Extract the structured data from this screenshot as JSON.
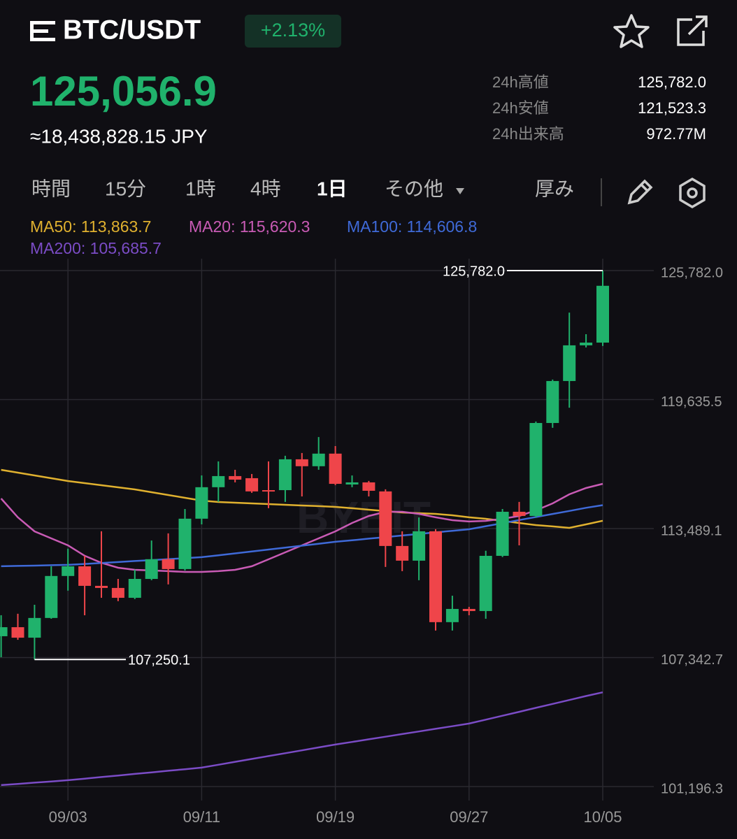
{
  "header": {
    "pair": "BTC/USDT",
    "change": "+2.13%",
    "price": "125,056.9",
    "price_jpy": "≈18,438,828.15 JPY",
    "stats": [
      {
        "label": "24h高値",
        "value": "125,782.0"
      },
      {
        "label": "24h安値",
        "value": "121,523.3"
      },
      {
        "label": "24h出来高",
        "value": "972.77M"
      }
    ]
  },
  "tabs": [
    "時間",
    "15分",
    "1時",
    "4時",
    "1日",
    "その他"
  ],
  "active_tab": 4,
  "depth": "厚み",
  "chart_data": {
    "type": "candlestick",
    "watermark": "BYBIT",
    "categories": [
      null,
      null,
      null,
      null,
      "09/03",
      null,
      null,
      null,
      null,
      null,
      null,
      null,
      "09/11",
      null,
      null,
      null,
      null,
      null,
      null,
      null,
      "09/19",
      null,
      null,
      null,
      null,
      null,
      null,
      null,
      "09/27",
      null,
      null,
      null,
      null,
      null,
      null,
      null,
      "10/05"
    ],
    "open": [
      108360,
      108790,
      108290,
      109230,
      111230,
      111690,
      110760,
      110660,
      110190,
      111090,
      112030,
      111560,
      113960,
      115460,
      115990,
      115890,
      115320,
      115320,
      116790,
      116460,
      117060,
      115590,
      115690,
      115260,
      112660,
      111960,
      113360,
      109030,
      109660,
      109560,
      112190,
      114290,
      114090,
      118520,
      120520,
      122220,
      122350
    ],
    "high": [
      109360,
      109430,
      109860,
      111690,
      112530,
      112190,
      113360,
      111090,
      111530,
      112920,
      113260,
      114420,
      116020,
      116690,
      116290,
      116090,
      116690,
      116960,
      117090,
      117850,
      117420,
      116020,
      115760,
      115360,
      113360,
      114020,
      113460,
      110290,
      109760,
      112430,
      114420,
      114760,
      118590,
      120590,
      123780,
      122750,
      125782.0
    ],
    "low": [
      107360,
      108190,
      107250.1,
      109190,
      110530,
      109360,
      110190,
      110030,
      110130,
      111030,
      110830,
      111490,
      113690,
      114760,
      115690,
      115190,
      114460,
      114760,
      115020,
      116290,
      115560,
      115460,
      115020,
      111660,
      111460,
      111030,
      108630,
      108630,
      109360,
      109190,
      112130,
      112690,
      114020,
      118290,
      119250,
      122120,
      122190
    ],
    "close": [
      108790,
      108290,
      109230,
      111230,
      111690,
      110760,
      110660,
      110190,
      111090,
      112030,
      111560,
      113960,
      115460,
      115990,
      115820,
      115260,
      115260,
      116790,
      116460,
      117060,
      115620,
      115690,
      115290,
      112660,
      111960,
      113360,
      109030,
      109660,
      109560,
      112190,
      114290,
      114090,
      118520,
      120520,
      122220,
      122350,
      125056.9
    ],
    "up_color": "#20b26c",
    "down_color": "#ef454a",
    "series": [
      {
        "name": "MA50: 113,863.7",
        "color": "#e0b12f",
        "values": [
          116289,
          116155,
          116022,
          115889,
          115756,
          115656,
          115556,
          115456,
          115356,
          115223,
          115089,
          114956,
          114823,
          114756,
          114723,
          114690,
          114656,
          114623,
          114590,
          114557,
          114523,
          114457,
          114390,
          114323,
          114257,
          114223,
          114190,
          114123,
          114024,
          113957,
          113857,
          113757,
          113657,
          113591,
          113524,
          113690,
          113863.7
        ]
      },
      {
        "name": "MA20: 115,620.3",
        "color": "#c95bb5",
        "values": [
          114923,
          114024,
          113357,
          113024,
          112691,
          112192,
          111858,
          111625,
          111525,
          111492,
          111459,
          111425,
          111425,
          111459,
          111525,
          111692,
          112025,
          112358,
          112691,
          113024,
          113357,
          113757,
          114090,
          114290,
          114290,
          114190,
          114024,
          113890,
          113824,
          113857,
          113957,
          114090,
          114357,
          114690,
          115123,
          115420,
          115620.3
        ]
      },
      {
        "name": "MA100: 114,606.8",
        "color": "#3f6ad8",
        "values": [
          111692,
          111709,
          111725,
          111742,
          111759,
          111805,
          111848,
          111895,
          111942,
          111988,
          112032,
          112078,
          112125,
          112215,
          112308,
          112398,
          112491,
          112581,
          112674,
          112764,
          112858,
          112931,
          113008,
          113081,
          113158,
          113231,
          113308,
          113381,
          113457,
          113604,
          113747,
          113894,
          114040,
          114187,
          114330,
          114477,
          114606.8
        ]
      },
      {
        "name": "MA200: 105,685.7",
        "color": "#7b4cc6",
        "values": [
          101266,
          101324,
          101383,
          101441,
          101499,
          101574,
          101649,
          101724,
          101799,
          101874,
          101949,
          102024,
          102099,
          102236,
          102374,
          102511,
          102649,
          102786,
          102923,
          103061,
          103198,
          103323,
          103448,
          103573,
          103698,
          103822,
          103947,
          104072,
          104197,
          104384,
          104572,
          104759,
          104946,
          105134,
          105321,
          105509,
          105685.7
        ]
      }
    ],
    "ylim": [
      101196.3,
      125782.0
    ],
    "yticks": [
      {
        "value": 101196.3,
        "label": "101,196.3"
      },
      {
        "value": 107342.7,
        "label": "107,342.7"
      },
      {
        "value": 113489.1,
        "label": "113,489.1"
      },
      {
        "value": 119635.5,
        "label": "119,635.5"
      },
      {
        "value": 125782.0,
        "label": "125,782.0"
      }
    ],
    "annotations": [
      {
        "text": "125,782.0",
        "value": 125782.0
      },
      {
        "text": "107,250.1",
        "value": 107250.1
      }
    ],
    "grid": true
  }
}
